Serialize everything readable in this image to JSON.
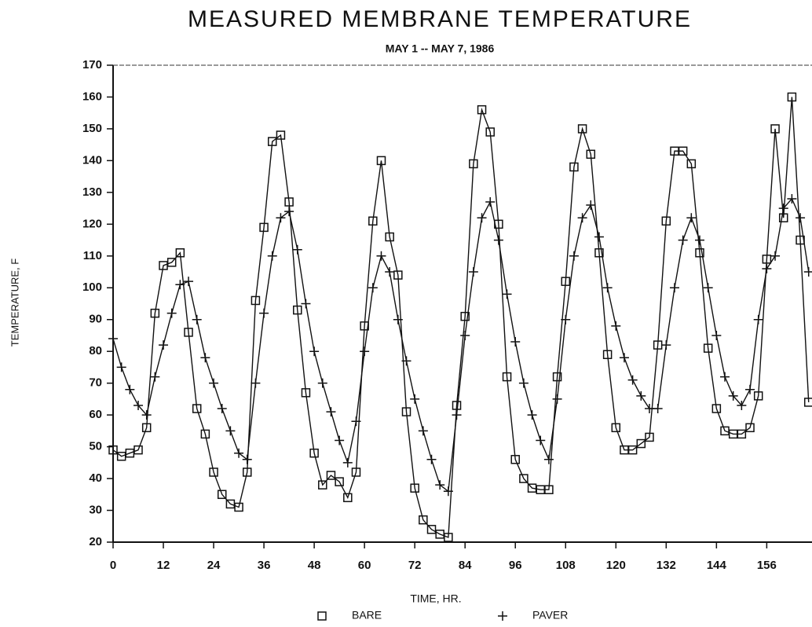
{
  "chart_data": {
    "type": "line",
    "title": "MEASURED MEMBRANE TEMPERATURE",
    "subtitle": "MAY 1 -- MAY 7, 1986",
    "x_label": "TIME, HR.",
    "y_label": "TEMPERATURE, F",
    "x": [
      0,
      2,
      4,
      6,
      8,
      10,
      12,
      14,
      16,
      18,
      20,
      22,
      24,
      26,
      28,
      30,
      32,
      34,
      36,
      38,
      40,
      42,
      44,
      46,
      48,
      50,
      52,
      54,
      56,
      58,
      60,
      62,
      64,
      66,
      68,
      70,
      72,
      74,
      76,
      78,
      80,
      82,
      84,
      86,
      88,
      90,
      92,
      94,
      96,
      98,
      100,
      102,
      104,
      106,
      108,
      110,
      112,
      114,
      116,
      118,
      120,
      122,
      124,
      126,
      128,
      130,
      132,
      134,
      136,
      138,
      140,
      142,
      144,
      146,
      148,
      150,
      152,
      154,
      156,
      158,
      160,
      162,
      164,
      166
    ],
    "series": [
      {
        "name": "BARE",
        "color": "#111111",
        "marker": "square",
        "values": [
          49,
          47,
          48,
          49,
          56,
          92,
          107,
          108,
          111,
          86,
          62,
          54,
          42,
          35,
          32,
          31,
          42,
          96,
          119,
          146,
          148,
          127,
          93,
          67,
          48,
          38,
          41,
          39,
          34,
          42,
          88,
          121,
          140,
          116,
          104,
          61,
          37,
          27,
          24,
          22.5,
          21.5,
          63,
          91,
          139,
          156,
          149,
          120,
          72,
          46,
          40,
          37,
          36.5,
          36.5,
          72,
          102,
          138,
          150,
          142,
          111,
          79,
          56,
          49,
          49,
          51,
          53,
          82,
          121,
          143,
          143,
          139,
          111,
          81,
          62,
          55,
          54,
          54,
          56,
          66,
          109,
          150,
          122,
          160,
          115,
          64
        ]
      },
      {
        "name": "PAVER",
        "color": "#111111",
        "marker": "plus",
        "values": [
          84,
          75,
          68,
          63,
          60,
          72,
          82,
          92,
          101,
          102,
          90,
          78,
          70,
          62,
          55,
          48,
          46,
          70,
          92,
          110,
          122,
          124,
          112,
          95,
          80,
          70,
          61,
          52,
          45,
          58,
          80,
          100,
          110,
          105,
          90,
          77,
          65,
          55,
          46,
          38,
          36,
          60,
          85,
          105,
          122,
          127,
          115,
          98,
          83,
          70,
          60,
          52,
          46,
          65,
          90,
          110,
          122,
          126,
          116,
          100,
          88,
          78,
          71,
          66,
          62,
          62,
          82,
          100,
          115,
          122,
          115,
          100,
          85,
          72,
          66,
          63,
          68,
          90,
          106,
          110,
          125,
          128,
          122,
          105
        ]
      }
    ],
    "xlim": [
      0,
      166.8
    ],
    "xticks": [
      0,
      12,
      24,
      36,
      48,
      60,
      72,
      84,
      96,
      108,
      120,
      132,
      144,
      156
    ],
    "ylim": [
      20,
      170
    ],
    "yticks": [
      20,
      30,
      40,
      50,
      60,
      70,
      80,
      90,
      100,
      110,
      120,
      130,
      140,
      150,
      160,
      170
    ],
    "legend": "bottom"
  }
}
